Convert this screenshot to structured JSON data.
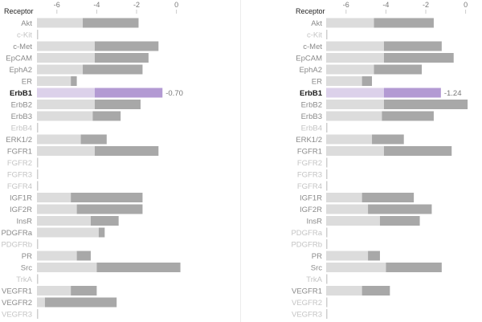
{
  "colors": {
    "bar_light": "#dcdcdc",
    "bar_dark": "#a8a8a8",
    "highlight_light": "#dcd1ea",
    "highlight_dark": "#b39ad3",
    "label_active": "#8a8a8a",
    "label_inactive": "#c4c4c4",
    "label_selected": "#1a1a1a",
    "tick_label": "#777777"
  },
  "chart_data": [
    {
      "type": "bar",
      "orientation": "horizontal",
      "axis_title": "Receptor",
      "xlim": [
        -7,
        0.5
      ],
      "xticks": [
        -6,
        -4,
        -2,
        0
      ],
      "selected": "ErbB1",
      "selected_value_label": "-0.70",
      "categories": [
        "Akt",
        "c-Kit",
        "c-Met",
        "EpCAM",
        "EphA2",
        "ER",
        "ErbB1",
        "ErbB2",
        "ErbB3",
        "ErbB4",
        "ERK1/2",
        "FGFR1",
        "FGFR2",
        "FGFR3",
        "FGFR4",
        "IGF1R",
        "IGF2R",
        "InsR",
        "PDGFRa",
        "PDGFRb",
        "PR",
        "Src",
        "TrkA",
        "VEGFR1",
        "VEGFR2",
        "VEGFR3"
      ],
      "active": [
        true,
        false,
        true,
        true,
        true,
        true,
        true,
        true,
        true,
        false,
        true,
        true,
        false,
        false,
        false,
        true,
        true,
        true,
        true,
        false,
        true,
        true,
        false,
        true,
        true,
        false
      ],
      "series": [
        {
          "name": "light",
          "start": [
            -7,
            -7,
            -7,
            -7,
            -7,
            -7,
            -7,
            -7,
            -7,
            -7,
            -7,
            -7,
            -7,
            -7,
            -7,
            -7,
            -7,
            -7,
            -7,
            -7,
            -7,
            -7,
            -7,
            -7,
            -7,
            -7
          ],
          "end": [
            -4.7,
            -7,
            -4.1,
            -4.1,
            -4.7,
            -5.3,
            -4.1,
            -4.1,
            -4.2,
            -7,
            -4.8,
            -4.1,
            -7,
            -7,
            -7,
            -5.3,
            -5.0,
            -4.3,
            -3.9,
            -7,
            -5.0,
            -4.0,
            -7,
            -5.3,
            -6.6,
            -7
          ]
        },
        {
          "name": "dark",
          "start": [
            -4.7,
            -7,
            -4.1,
            -4.1,
            -4.7,
            -5.3,
            -4.1,
            -4.1,
            -4.2,
            -7,
            -4.8,
            -4.1,
            -7,
            -7,
            -7,
            -5.3,
            -5.0,
            -4.3,
            -3.9,
            -7,
            -5.0,
            -4.0,
            -7,
            -5.3,
            -6.6,
            -7
          ],
          "end": [
            -1.9,
            -7,
            -0.9,
            -1.4,
            -1.7,
            -5.0,
            -0.7,
            -1.8,
            -2.8,
            -7,
            -3.5,
            -0.9,
            -7,
            -7,
            -7,
            -1.7,
            -1.7,
            -2.9,
            -3.6,
            -7,
            -4.3,
            0.2,
            -7,
            -4.0,
            -3.0,
            -7
          ]
        }
      ]
    },
    {
      "type": "bar",
      "orientation": "horizontal",
      "axis_title": "Receptor",
      "xlim": [
        -7,
        0.5
      ],
      "xticks": [
        -6,
        -4,
        -2,
        0
      ],
      "selected": "ErbB1",
      "selected_value_label": "-1.24",
      "categories": [
        "Akt",
        "c-Kit",
        "c-Met",
        "EpCAM",
        "EphA2",
        "ER",
        "ErbB1",
        "ErbB2",
        "ErbB3",
        "ErbB4",
        "ERK1/2",
        "FGFR1",
        "FGFR2",
        "FGFR3",
        "FGFR4",
        "IGF1R",
        "IGF2R",
        "InsR",
        "PDGFRa",
        "PDGFRb",
        "PR",
        "Src",
        "TrkA",
        "VEGFR1",
        "VEGFR2",
        "VEGFR3"
      ],
      "active": [
        true,
        false,
        true,
        true,
        true,
        true,
        true,
        true,
        true,
        false,
        true,
        true,
        false,
        false,
        false,
        true,
        true,
        true,
        false,
        false,
        true,
        true,
        false,
        true,
        false,
        false
      ],
      "series": [
        {
          "name": "light",
          "start": [
            -7,
            -7,
            -7,
            -7,
            -7,
            -7,
            -7,
            -7,
            -7,
            -7,
            -7,
            -7,
            -7,
            -7,
            -7,
            -7,
            -7,
            -7,
            -7,
            -7,
            -7,
            -7,
            -7,
            -7,
            -7,
            -7
          ],
          "end": [
            -4.6,
            -7,
            -4.1,
            -4.1,
            -4.6,
            -5.2,
            -4.1,
            -4.1,
            -4.2,
            -7,
            -4.7,
            -4.1,
            -7,
            -7,
            -7,
            -5.2,
            -4.9,
            -4.3,
            -7,
            -7,
            -4.9,
            -4.0,
            -7,
            -5.2,
            -7,
            -7
          ]
        },
        {
          "name": "dark",
          "start": [
            -4.6,
            -7,
            -4.1,
            -4.1,
            -4.6,
            -5.2,
            -4.1,
            -4.1,
            -4.2,
            -7,
            -4.7,
            -4.1,
            -7,
            -7,
            -7,
            -5.2,
            -4.9,
            -4.3,
            -7,
            -7,
            -4.9,
            -4.0,
            -7,
            -5.2,
            -7,
            -7
          ],
          "end": [
            -1.6,
            -7,
            -1.2,
            -0.6,
            -2.2,
            -4.7,
            -1.24,
            0.1,
            -1.6,
            -7,
            -3.1,
            -0.7,
            -7,
            -7,
            -7,
            -2.6,
            -1.7,
            -2.3,
            -7,
            -7,
            -4.3,
            -1.2,
            -7,
            -3.8,
            -7,
            -7
          ]
        }
      ]
    }
  ]
}
